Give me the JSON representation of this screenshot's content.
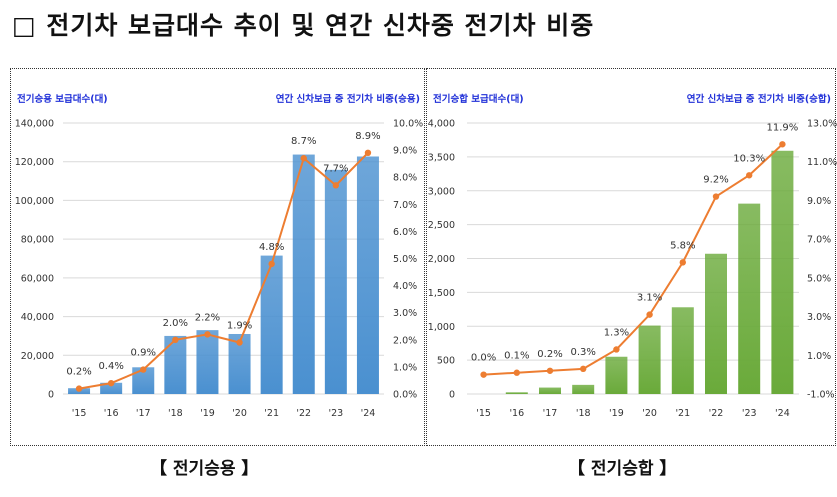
{
  "title": "□ 전기차 보급대수 추이 및 연간 신차중 전기차 비중",
  "captions": [
    "【 전기승용 】",
    "【 전기승합 】"
  ],
  "chart_data": [
    {
      "type": "bar+line",
      "left_axis_title": "전기승용 보급대수(대)",
      "right_axis_title": "연간 신차보급 중 전기차 비중(승용)",
      "categories": [
        "'15",
        "'16",
        "'17",
        "'18",
        "'19",
        "'20",
        "'21",
        "'22",
        "'23",
        "'24"
      ],
      "bar_values": [
        3000,
        5800,
        13800,
        30000,
        33000,
        31000,
        71500,
        123700,
        115800,
        122700
      ],
      "line_values": [
        0.2,
        0.4,
        0.9,
        2.0,
        2.2,
        1.9,
        4.8,
        8.7,
        7.7,
        8.9
      ],
      "line_labels": [
        "0.2%",
        "0.4%",
        "0.9%",
        "2.0%",
        "2.2%",
        "1.9%",
        "4.8%",
        "8.7%",
        "7.7%",
        "8.9%"
      ],
      "ylim": [
        0,
        140000
      ],
      "yticks": [
        "0",
        "20,000",
        "40,000",
        "60,000",
        "80,000",
        "100,000",
        "120,000",
        "140,000"
      ],
      "y2lim": [
        0,
        10
      ],
      "y2ticks": [
        "0.0%",
        "1.0%",
        "2.0%",
        "3.0%",
        "4.0%",
        "5.0%",
        "6.0%",
        "7.0%",
        "8.0%",
        "9.0%",
        "10.0%"
      ],
      "bar_color": "#4a90d0",
      "line_color": "#ed7d31",
      "grid": true
    },
    {
      "type": "bar+line",
      "left_axis_title": "전기승합 보급대수(대)",
      "right_axis_title": "연간 신차보급 중 전기차 비중(승합)",
      "categories": [
        "'15",
        "'16",
        "'17",
        "'18",
        "'19",
        "'20",
        "'21",
        "'22",
        "'23",
        "'24"
      ],
      "bar_values": [
        0,
        25,
        95,
        135,
        550,
        1010,
        1280,
        2070,
        2810,
        3590
      ],
      "line_values": [
        0.0,
        0.1,
        0.2,
        0.3,
        1.3,
        3.1,
        5.8,
        9.2,
        10.3,
        11.9
      ],
      "line_labels": [
        "0.0%",
        "0.1%",
        "0.2%",
        "0.3%",
        "1.3%",
        "3.1%",
        "5.8%",
        "9.2%",
        "10.3%",
        "11.9%"
      ],
      "ylim": [
        0,
        4000
      ],
      "yticks": [
        "0",
        "500",
        "1,000",
        "1,500",
        "2,000",
        "2,500",
        "3,000",
        "3,500",
        "4,000"
      ],
      "y2lim": [
        -1,
        13
      ],
      "y2ticks": [
        "-1.0%",
        "1.0%",
        "3.0%",
        "5.0%",
        "7.0%",
        "9.0%",
        "11.0%",
        "13.0%"
      ],
      "bar_color": "#6aaa3a",
      "line_color": "#ed7d31",
      "grid": true
    }
  ]
}
